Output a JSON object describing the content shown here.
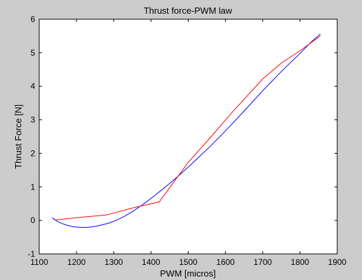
{
  "chart_data": {
    "type": "line",
    "title": "Thrust force-PWM law",
    "xlabel": "PWM [micros]",
    "ylabel": "Thrust Force [N]",
    "xlim": [
      1100,
      1900
    ],
    "ylim": [
      -1,
      6
    ],
    "xticks": [
      1100,
      1200,
      1300,
      1400,
      1500,
      1600,
      1700,
      1800,
      1900
    ],
    "yticks": [
      -1,
      0,
      1,
      2,
      3,
      4,
      5,
      6
    ],
    "grid": false,
    "series": [
      {
        "color": "#0000ff",
        "x": [
          1135,
          1150,
          1170,
          1190,
          1210,
          1230,
          1250,
          1270,
          1290,
          1310,
          1330,
          1350,
          1370,
          1390,
          1410,
          1430,
          1450,
          1470,
          1500,
          1530,
          1560,
          1600,
          1650,
          1700,
          1750,
          1800,
          1830,
          1855
        ],
        "y": [
          0.08,
          -0.04,
          -0.13,
          -0.19,
          -0.21,
          -0.21,
          -0.18,
          -0.13,
          -0.07,
          0.02,
          0.13,
          0.26,
          0.41,
          0.57,
          0.74,
          0.92,
          1.1,
          1.29,
          1.59,
          1.9,
          2.22,
          2.67,
          3.26,
          3.87,
          4.44,
          4.98,
          5.32,
          5.56
        ]
      },
      {
        "color": "#ff0000",
        "x": [
          1140,
          1200,
          1280,
          1350,
          1422,
          1500,
          1560,
          1620,
          1700,
          1750,
          1800,
          1855
        ],
        "y": [
          0.01,
          0.08,
          0.16,
          0.37,
          0.55,
          1.73,
          2.48,
          3.25,
          4.22,
          4.69,
          5.06,
          5.5
        ]
      }
    ]
  }
}
